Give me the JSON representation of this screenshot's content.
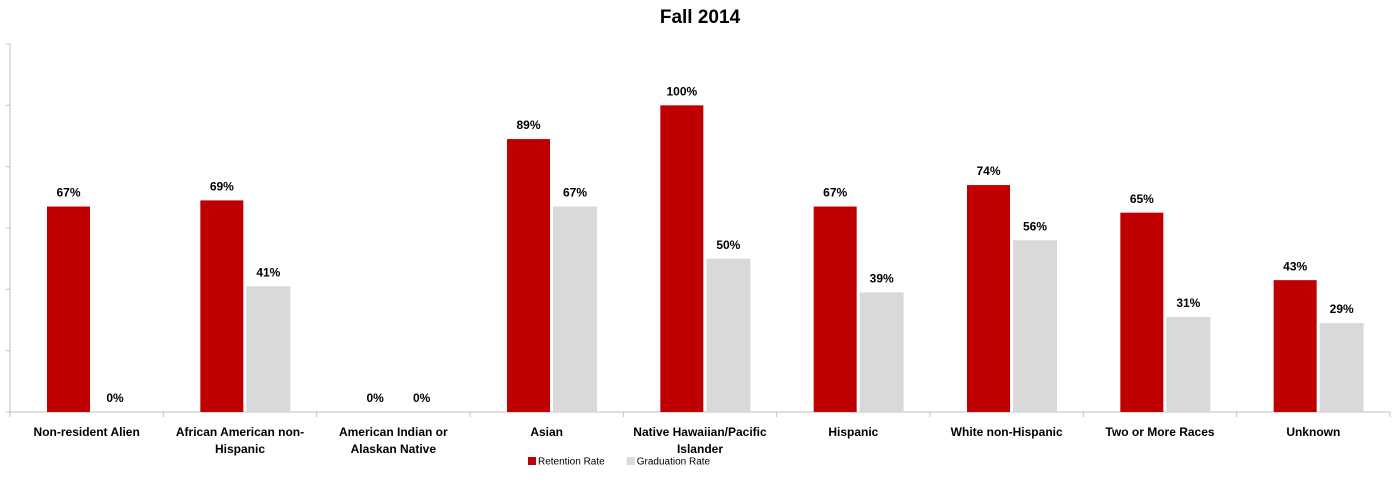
{
  "chart_data": {
    "type": "bar",
    "title": "Fall 2014",
    "categories": [
      "Non-resident Alien",
      "African American non-Hispanic",
      "American Indian or Alaskan Native",
      "Asian",
      "Native Hawaiian/Pacific Islander",
      "Hispanic",
      "White non-Hispanic",
      "Two or More Races",
      "Unknown"
    ],
    "series": [
      {
        "name": "Retention Rate",
        "color": "#c00000",
        "values": [
          67,
          69,
          0,
          89,
          100,
          67,
          74,
          65,
          43
        ],
        "value_labels": [
          "67%",
          "69%",
          "0%",
          "89%",
          "100%",
          "67%",
          "74%",
          "65%",
          "43%"
        ]
      },
      {
        "name": "Graduation Rate",
        "color": "#d9d9d9",
        "values": [
          0,
          41,
          0,
          67,
          50,
          39,
          56,
          31,
          29
        ],
        "value_labels": [
          "0%",
          "41%",
          "0%",
          "67%",
          "50%",
          "39%",
          "56%",
          "31%",
          "29%"
        ]
      }
    ],
    "ylim": [
      0,
      120
    ],
    "yticks": [
      0,
      20,
      40,
      60,
      80,
      100,
      120
    ],
    "legend": "bottom"
  }
}
